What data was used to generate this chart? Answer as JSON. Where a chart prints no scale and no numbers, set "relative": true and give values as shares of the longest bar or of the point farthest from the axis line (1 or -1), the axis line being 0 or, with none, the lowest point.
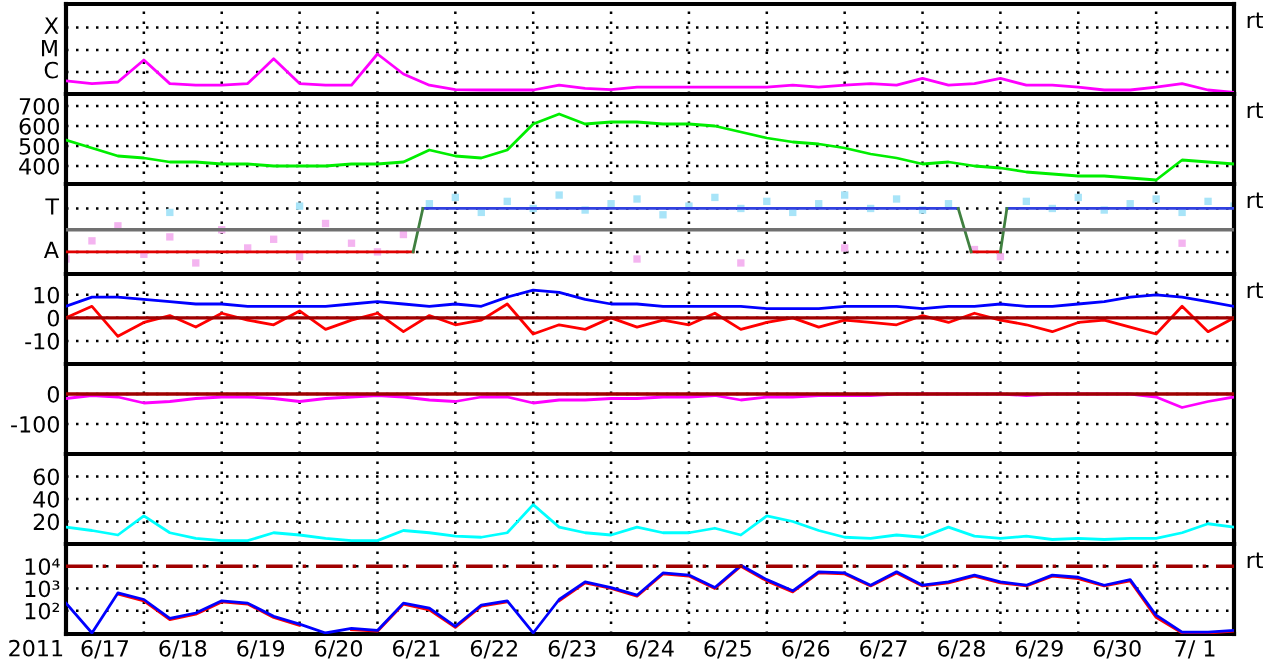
{
  "chart_data": [
    {
      "type": "line",
      "relative": true,
      "tick_labels": "y",
      "grid": true,
      "annotations": [
        "C",
        "M",
        "X",
        "rt"
      ],
      "xlim": [
        "2011-06-17",
        "2011-07-02"
      ],
      "xticks": [
        {
          "value": "2011-06-17",
          "label": null
        },
        {
          "value": "2011-06-18",
          "label": null
        },
        {
          "value": "2011-06-19",
          "label": null
        },
        {
          "value": "2011-06-20",
          "label": null
        },
        {
          "value": "2011-06-21",
          "label": null
        },
        {
          "value": "2011-06-22",
          "label": null
        },
        {
          "value": "2011-06-23",
          "label": null
        },
        {
          "value": "2011-06-24",
          "label": null
        },
        {
          "value": "2011-06-25",
          "label": null
        },
        {
          "value": "2011-06-26",
          "label": null
        },
        {
          "value": "2011-06-27",
          "label": null
        },
        {
          "value": "2011-06-28",
          "label": null
        },
        {
          "value": "2011-06-29",
          "label": null
        },
        {
          "value": "2011-06-30",
          "label": null
        },
        {
          "value": "2011-07-01",
          "label": null
        },
        {
          "value": "2011-07-02",
          "label": null
        }
      ],
      "x": [
        "2011-06-17T00:00",
        "2011-06-17T08:00",
        "2011-06-17T16:00",
        "2011-06-18T00:00",
        "2011-06-18T08:00",
        "2011-06-18T16:00",
        "2011-06-19T00:00",
        "2011-06-19T08:00",
        "2011-06-19T16:00",
        "2011-06-20T00:00",
        "2011-06-20T08:00",
        "2011-06-20T16:00",
        "2011-06-21T00:00",
        "2011-06-21T08:00",
        "2011-06-21T16:00",
        "2011-06-22T00:00",
        "2011-06-22T08:00",
        "2011-06-22T16:00",
        "2011-06-23T00:00",
        "2011-06-23T08:00",
        "2011-06-23T16:00",
        "2011-06-24T00:00",
        "2011-06-24T08:00",
        "2011-06-24T16:00",
        "2011-06-25T00:00",
        "2011-06-25T08:00",
        "2011-06-25T16:00",
        "2011-06-26T00:00",
        "2011-06-26T08:00",
        "2011-06-26T16:00",
        "2011-06-27T00:00",
        "2011-06-27T08:00",
        "2011-06-27T16:00",
        "2011-06-28T00:00",
        "2011-06-28T08:00",
        "2011-06-28T16:00",
        "2011-06-29T00:00",
        "2011-06-29T08:00",
        "2011-06-29T16:00",
        "2011-06-30T00:00",
        "2011-06-30T08:00",
        "2011-06-30T16:00",
        "2011-07-01T00:00",
        "2011-07-01T08:00",
        "2011-07-01T16:00",
        "2011-07-02T00:00"
      ],
      "series": [
        {
          "color": "#ff00ff",
          "values": [
            0.33,
            0.26,
            0.3,
            0.85,
            0.26,
            0.22,
            0.22,
            0.26,
            0.88,
            0.26,
            0.22,
            0.22,
            1,
            0.5,
            0.22,
            0.11,
            0.1,
            0.1,
            0.1,
            0.22,
            0.14,
            0.11,
            0.17,
            0.17,
            0.17,
            0.17,
            0.17,
            0.17,
            0.22,
            0.17,
            0.22,
            0.26,
            0.22,
            0.39,
            0.22,
            0.26,
            0.39,
            0.22,
            0.22,
            0.17,
            0.1,
            0.1,
            0.17,
            0.26,
            0.1,
            0.04
          ]
        }
      ]
    },
    {
      "type": "line",
      "ylim": [
        310,
        760
      ],
      "yticks": [
        400,
        500,
        600,
        700
      ],
      "tick_labels": "y",
      "grid": true,
      "annotations": [
        "rt"
      ],
      "xlim": [
        "2011-06-17",
        "2011-07-02"
      ],
      "xticks": [
        {
          "value": "2011-06-17",
          "label": null
        },
        {
          "value": "2011-06-18",
          "label": null
        },
        {
          "value": "2011-06-19",
          "label": null
        },
        {
          "value": "2011-06-20",
          "label": null
        },
        {
          "value": "2011-06-21",
          "label": null
        },
        {
          "value": "2011-06-22",
          "label": null
        },
        {
          "value": "2011-06-23",
          "label": null
        },
        {
          "value": "2011-06-24",
          "label": null
        },
        {
          "value": "2011-06-25",
          "label": null
        },
        {
          "value": "2011-06-26",
          "label": null
        },
        {
          "value": "2011-06-27",
          "label": null
        },
        {
          "value": "2011-06-28",
          "label": null
        },
        {
          "value": "2011-06-29",
          "label": null
        },
        {
          "value": "2011-06-30",
          "label": null
        },
        {
          "value": "2011-07-01",
          "label": null
        },
        {
          "value": "2011-07-02",
          "label": null
        }
      ],
      "x": [
        "2011-06-17T00:00",
        "2011-06-17T08:00",
        "2011-06-17T16:00",
        "2011-06-18T00:00",
        "2011-06-18T08:00",
        "2011-06-18T16:00",
        "2011-06-19T00:00",
        "2011-06-19T08:00",
        "2011-06-19T16:00",
        "2011-06-20T00:00",
        "2011-06-20T08:00",
        "2011-06-20T16:00",
        "2011-06-21T00:00",
        "2011-06-21T08:00",
        "2011-06-21T16:00",
        "2011-06-22T00:00",
        "2011-06-22T08:00",
        "2011-06-22T16:00",
        "2011-06-23T00:00",
        "2011-06-23T08:00",
        "2011-06-23T16:00",
        "2011-06-24T00:00",
        "2011-06-24T08:00",
        "2011-06-24T16:00",
        "2011-06-25T00:00",
        "2011-06-25T08:00",
        "2011-06-25T16:00",
        "2011-06-26T00:00",
        "2011-06-26T08:00",
        "2011-06-26T16:00",
        "2011-06-27T00:00",
        "2011-06-27T08:00",
        "2011-06-27T16:00",
        "2011-06-28T00:00",
        "2011-06-28T08:00",
        "2011-06-28T16:00",
        "2011-06-29T00:00",
        "2011-06-29T08:00",
        "2011-06-29T16:00",
        "2011-06-30T00:00",
        "2011-06-30T08:00",
        "2011-06-30T16:00",
        "2011-07-01T00:00",
        "2011-07-01T08:00",
        "2011-07-01T16:00",
        "2011-07-02T00:00"
      ],
      "series": [
        {
          "color": "#00ee00",
          "values": [
            530,
            490,
            450,
            440,
            420,
            420,
            410,
            410,
            400,
            400,
            400,
            410,
            410,
            420,
            480,
            450,
            440,
            480,
            610,
            660,
            610,
            620,
            620,
            610,
            610,
            600,
            570,
            540,
            520,
            510,
            490,
            460,
            440,
            410,
            420,
            400,
            390,
            370,
            360,
            350,
            350,
            340,
            330,
            430,
            420,
            410
          ]
        }
      ]
    },
    {
      "type": "line",
      "relative": true,
      "tick_labels": "y",
      "grid": true,
      "annotations": [
        "A",
        "T",
        "rt"
      ],
      "ref_lines": [
        {
          "axis": "y",
          "value": 0.56,
          "color": "#707070"
        }
      ],
      "xlim": [
        "2011-06-17",
        "2011-07-02"
      ],
      "xticks": [
        {
          "value": "2011-06-17",
          "label": null
        },
        {
          "value": "2011-06-18",
          "label": null
        },
        {
          "value": "2011-06-19",
          "label": null
        },
        {
          "value": "2011-06-20",
          "label": null
        },
        {
          "value": "2011-06-21",
          "label": null
        },
        {
          "value": "2011-06-22",
          "label": null
        },
        {
          "value": "2011-06-23",
          "label": null
        },
        {
          "value": "2011-06-24",
          "label": null
        },
        {
          "value": "2011-06-25",
          "label": null
        },
        {
          "value": "2011-06-26",
          "label": null
        },
        {
          "value": "2011-06-27",
          "label": null
        },
        {
          "value": "2011-06-28",
          "label": null
        },
        {
          "value": "2011-06-29",
          "label": null
        },
        {
          "value": "2011-06-30",
          "label": null
        },
        {
          "value": "2011-07-01",
          "label": null
        },
        {
          "value": "2011-07-02",
          "label": null
        }
      ],
      "x": [
        "2011-06-17T00:00",
        "2011-06-17T08:00",
        "2011-06-17T16:00",
        "2011-06-18T00:00",
        "2011-06-18T08:00",
        "2011-06-18T16:00",
        "2011-06-19T00:00",
        "2011-06-19T08:00",
        "2011-06-19T16:00",
        "2011-06-20T00:00",
        "2011-06-20T08:00",
        "2011-06-20T16:00",
        "2011-06-21T00:00",
        "2011-06-21T08:00",
        "2011-06-21T16:00",
        "2011-06-22T00:00",
        "2011-06-22T08:00",
        "2011-06-22T16:00",
        "2011-06-23T00:00",
        "2011-06-23T08:00",
        "2011-06-23T16:00",
        "2011-06-24T00:00",
        "2011-06-24T08:00",
        "2011-06-24T16:00",
        "2011-06-25T00:00",
        "2011-06-25T08:00",
        "2011-06-25T16:00",
        "2011-06-26T00:00",
        "2011-06-26T08:00",
        "2011-06-26T16:00",
        "2011-06-27T00:00",
        "2011-06-27T08:00",
        "2011-06-27T16:00",
        "2011-06-28T00:00",
        "2011-06-28T08:00",
        "2011-06-28T16:00",
        "2011-06-29T00:00",
        "2011-06-29T08:00",
        "2011-06-29T16:00",
        "2011-06-30T00:00",
        "2011-06-30T08:00",
        "2011-06-30T16:00",
        "2011-07-01T00:00",
        "2011-07-01T08:00",
        "2011-07-01T16:00",
        "2011-07-02T00:00"
      ],
      "series": [
        {
          "type": "scatter",
          "marker": "square",
          "color": "#f4b4f0",
          "values": [
            0.19,
            0.42,
            0.61,
            0.25,
            0.47,
            0.14,
            0.56,
            0.33,
            0.44,
            0.22,
            0.64,
            0.39,
            0.28,
            0.5,
            null,
            null,
            null,
            null,
            null,
            null,
            null,
            null,
            0.19,
            null,
            null,
            null,
            0.14,
            null,
            null,
            null,
            0.33,
            null,
            null,
            null,
            null,
            0.31,
            0.22,
            null,
            null,
            null,
            null,
            null,
            null,
            0.39,
            null,
            null
          ]
        },
        {
          "type": "scatter",
          "marker": "square",
          "color": "#a8e4f8",
          "values": [
            null,
            null,
            null,
            null,
            0.78,
            null,
            null,
            null,
            null,
            0.86,
            null,
            null,
            null,
            null,
            0.89,
            0.97,
            0.78,
            0.92,
            0.83,
            1,
            0.81,
            0.89,
            0.95,
            0.75,
            0.86,
            0.97,
            0.83,
            0.92,
            0.78,
            0.89,
            1,
            0.83,
            0.95,
            0.81,
            0.89,
            null,
            null,
            0.92,
            0.83,
            0.97,
            0.81,
            0.89,
            0.95,
            0.78,
            0.92,
            0.86
          ]
        },
        {
          "color": "#e00000",
          "x": [
            "2011-06-17T00:00",
            "2011-06-21T11:00",
            "2011-06-25T00:00",
            "2011-06-28T15:00",
            "2011-06-29T00:00"
          ],
          "values": [
            0.28,
            0.28,
            null,
            0.28,
            0.28
          ]
        },
        {
          "color": "#3040e0",
          "x": [
            "2011-06-21T14:00",
            "2011-06-28T11:00",
            "2011-06-28T20:00",
            "2011-06-29T02:00",
            "2011-07-02T00:00"
          ],
          "values": [
            0.83,
            0.83,
            null,
            0.83,
            0.83
          ]
        },
        {
          "color": "#408040",
          "x": [
            "2011-06-21T11:00",
            "2011-06-21T14:00",
            "2011-06-24T00:00",
            "2011-06-28T11:00",
            "2011-06-28T15:00",
            "2011-06-28T20:00",
            "2011-06-29T00:00",
            "2011-06-29T02:00"
          ],
          "values": [
            0.28,
            0.83,
            null,
            0.83,
            0.28,
            null,
            0.28,
            0.83
          ]
        }
      ]
    },
    {
      "type": "line",
      "ylim": [
        -20,
        19
      ],
      "yticks": [
        -10,
        0,
        10
      ],
      "tick_labels": "y",
      "grid": true,
      "annotations": [
        "rt"
      ],
      "ref_lines": [
        {
          "axis": "y",
          "value": 0,
          "color": "#a00000"
        }
      ],
      "xlim": [
        "2011-06-17",
        "2011-07-02"
      ],
      "xticks": [
        {
          "value": "2011-06-17",
          "label": null
        },
        {
          "value": "2011-06-18",
          "label": null
        },
        {
          "value": "2011-06-19",
          "label": null
        },
        {
          "value": "2011-06-20",
          "label": null
        },
        {
          "value": "2011-06-21",
          "label": null
        },
        {
          "value": "2011-06-22",
          "label": null
        },
        {
          "value": "2011-06-23",
          "label": null
        },
        {
          "value": "2011-06-24",
          "label": null
        },
        {
          "value": "2011-06-25",
          "label": null
        },
        {
          "value": "2011-06-26",
          "label": null
        },
        {
          "value": "2011-06-27",
          "label": null
        },
        {
          "value": "2011-06-28",
          "label": null
        },
        {
          "value": "2011-06-29",
          "label": null
        },
        {
          "value": "2011-06-30",
          "label": null
        },
        {
          "value": "2011-07-01",
          "label": null
        },
        {
          "value": "2011-07-02",
          "label": null
        }
      ],
      "x": [
        "2011-06-17T00:00",
        "2011-06-17T08:00",
        "2011-06-17T16:00",
        "2011-06-18T00:00",
        "2011-06-18T08:00",
        "2011-06-18T16:00",
        "2011-06-19T00:00",
        "2011-06-19T08:00",
        "2011-06-19T16:00",
        "2011-06-20T00:00",
        "2011-06-20T08:00",
        "2011-06-20T16:00",
        "2011-06-21T00:00",
        "2011-06-21T08:00",
        "2011-06-21T16:00",
        "2011-06-22T00:00",
        "2011-06-22T08:00",
        "2011-06-22T16:00",
        "2011-06-23T00:00",
        "2011-06-23T08:00",
        "2011-06-23T16:00",
        "2011-06-24T00:00",
        "2011-06-24T08:00",
        "2011-06-24T16:00",
        "2011-06-25T00:00",
        "2011-06-25T08:00",
        "2011-06-25T16:00",
        "2011-06-26T00:00",
        "2011-06-26T08:00",
        "2011-06-26T16:00",
        "2011-06-27T00:00",
        "2011-06-27T08:00",
        "2011-06-27T16:00",
        "2011-06-28T00:00",
        "2011-06-28T08:00",
        "2011-06-28T16:00",
        "2011-06-29T00:00",
        "2011-06-29T08:00",
        "2011-06-29T16:00",
        "2011-06-30T00:00",
        "2011-06-30T08:00",
        "2011-06-30T16:00",
        "2011-07-01T00:00",
        "2011-07-01T08:00",
        "2011-07-01T16:00",
        "2011-07-02T00:00"
      ],
      "series": [
        {
          "color": "#0000ff",
          "values": [
            5,
            9,
            9,
            8,
            7,
            6,
            6,
            5,
            5,
            5,
            5,
            6,
            7,
            6,
            5,
            6,
            5,
            9,
            12,
            11,
            8,
            6,
            6,
            5,
            5,
            5,
            5,
            4,
            4,
            4,
            5,
            5,
            5,
            4,
            5,
            5,
            6,
            5,
            5,
            6,
            7,
            9,
            10,
            9,
            7,
            5
          ]
        },
        {
          "color": "#ff0000",
          "values": [
            0,
            5,
            -8,
            -2,
            1,
            -4,
            2,
            -1,
            -3,
            3,
            -5,
            -1,
            2,
            -6,
            1,
            -3,
            -1,
            6,
            -7,
            -3,
            -5,
            0,
            -4,
            -1,
            -3,
            2,
            -5,
            -2,
            0,
            -4,
            -1,
            -2,
            -3,
            1,
            -2,
            2,
            -1,
            -3,
            -6,
            -2,
            -1,
            -4,
            -7,
            5,
            -6,
            0
          ]
        }
      ]
    },
    {
      "type": "line",
      "ylim": [
        -200,
        100
      ],
      "yticks": [
        -100,
        0
      ],
      "tick_labels": "y",
      "grid": true,
      "ref_lines": [
        {
          "axis": "y",
          "value": 0,
          "color": "#a00000"
        }
      ],
      "xlim": [
        "2011-06-17",
        "2011-07-02"
      ],
      "xticks": [
        {
          "value": "2011-06-17",
          "label": null
        },
        {
          "value": "2011-06-18",
          "label": null
        },
        {
          "value": "2011-06-19",
          "label": null
        },
        {
          "value": "2011-06-20",
          "label": null
        },
        {
          "value": "2011-06-21",
          "label": null
        },
        {
          "value": "2011-06-22",
          "label": null
        },
        {
          "value": "2011-06-23",
          "label": null
        },
        {
          "value": "2011-06-24",
          "label": null
        },
        {
          "value": "2011-06-25",
          "label": null
        },
        {
          "value": "2011-06-26",
          "label": null
        },
        {
          "value": "2011-06-27",
          "label": null
        },
        {
          "value": "2011-06-28",
          "label": null
        },
        {
          "value": "2011-06-29",
          "label": null
        },
        {
          "value": "2011-06-30",
          "label": null
        },
        {
          "value": "2011-07-01",
          "label": null
        },
        {
          "value": "2011-07-02",
          "label": null
        }
      ],
      "x": [
        "2011-06-17T00:00",
        "2011-06-17T08:00",
        "2011-06-17T16:00",
        "2011-06-18T00:00",
        "2011-06-18T08:00",
        "2011-06-18T16:00",
        "2011-06-19T00:00",
        "2011-06-19T08:00",
        "2011-06-19T16:00",
        "2011-06-20T00:00",
        "2011-06-20T08:00",
        "2011-06-20T16:00",
        "2011-06-21T00:00",
        "2011-06-21T08:00",
        "2011-06-21T16:00",
        "2011-06-22T00:00",
        "2011-06-22T08:00",
        "2011-06-22T16:00",
        "2011-06-23T00:00",
        "2011-06-23T08:00",
        "2011-06-23T16:00",
        "2011-06-24T00:00",
        "2011-06-24T08:00",
        "2011-06-24T16:00",
        "2011-06-25T00:00",
        "2011-06-25T08:00",
        "2011-06-25T16:00",
        "2011-06-26T00:00",
        "2011-06-26T08:00",
        "2011-06-26T16:00",
        "2011-06-27T00:00",
        "2011-06-27T08:00",
        "2011-06-27T16:00",
        "2011-06-28T00:00",
        "2011-06-28T08:00",
        "2011-06-28T16:00",
        "2011-06-29T00:00",
        "2011-06-29T08:00",
        "2011-06-29T16:00",
        "2011-06-30T00:00",
        "2011-06-30T08:00",
        "2011-06-30T16:00",
        "2011-07-01T00:00",
        "2011-07-01T08:00",
        "2011-07-01T16:00",
        "2011-07-02T00:00"
      ],
      "series": [
        {
          "color": "#ff00ff",
          "values": [
            -15,
            -5,
            -10,
            -30,
            -25,
            -15,
            -10,
            -10,
            -15,
            -25,
            -15,
            -10,
            -5,
            -10,
            -20,
            -25,
            -10,
            -10,
            -30,
            -20,
            -20,
            -15,
            -15,
            -10,
            -10,
            -5,
            -20,
            -10,
            -10,
            -5,
            -5,
            -5,
            0,
            0,
            0,
            0,
            0,
            -5,
            0,
            0,
            0,
            0,
            -10,
            -45,
            -25,
            -10
          ]
        }
      ]
    },
    {
      "type": "line",
      "ylim": [
        0,
        80
      ],
      "yticks": [
        20,
        40,
        60
      ],
      "tick_labels": "y",
      "grid": true,
      "xlim": [
        "2011-06-17",
        "2011-07-02"
      ],
      "xticks": [
        {
          "value": "2011-06-17",
          "label": null
        },
        {
          "value": "2011-06-18",
          "label": null
        },
        {
          "value": "2011-06-19",
          "label": null
        },
        {
          "value": "2011-06-20",
          "label": null
        },
        {
          "value": "2011-06-21",
          "label": null
        },
        {
          "value": "2011-06-22",
          "label": null
        },
        {
          "value": "2011-06-23",
          "label": null
        },
        {
          "value": "2011-06-24",
          "label": null
        },
        {
          "value": "2011-06-25",
          "label": null
        },
        {
          "value": "2011-06-26",
          "label": null
        },
        {
          "value": "2011-06-27",
          "label": null
        },
        {
          "value": "2011-06-28",
          "label": null
        },
        {
          "value": "2011-06-29",
          "label": null
        },
        {
          "value": "2011-06-30",
          "label": null
        },
        {
          "value": "2011-07-01",
          "label": null
        },
        {
          "value": "2011-07-02",
          "label": null
        }
      ],
      "x": [
        "2011-06-17T00:00",
        "2011-06-17T08:00",
        "2011-06-17T16:00",
        "2011-06-18T00:00",
        "2011-06-18T08:00",
        "2011-06-18T16:00",
        "2011-06-19T00:00",
        "2011-06-19T08:00",
        "2011-06-19T16:00",
        "2011-06-20T00:00",
        "2011-06-20T08:00",
        "2011-06-20T16:00",
        "2011-06-21T00:00",
        "2011-06-21T08:00",
        "2011-06-21T16:00",
        "2011-06-22T00:00",
        "2011-06-22T08:00",
        "2011-06-22T16:00",
        "2011-06-23T00:00",
        "2011-06-23T08:00",
        "2011-06-23T16:00",
        "2011-06-24T00:00",
        "2011-06-24T08:00",
        "2011-06-24T16:00",
        "2011-06-25T00:00",
        "2011-06-25T08:00",
        "2011-06-25T16:00",
        "2011-06-26T00:00",
        "2011-06-26T08:00",
        "2011-06-26T16:00",
        "2011-06-27T00:00",
        "2011-06-27T08:00",
        "2011-06-27T16:00",
        "2011-06-28T00:00",
        "2011-06-28T08:00",
        "2011-06-28T16:00",
        "2011-06-29T00:00",
        "2011-06-29T08:00",
        "2011-06-29T16:00",
        "2011-06-30T00:00",
        "2011-06-30T08:00",
        "2011-06-30T16:00",
        "2011-07-01T00:00",
        "2011-07-01T08:00",
        "2011-07-01T16:00",
        "2011-07-02T00:00"
      ],
      "series": [
        {
          "color": "#00ffff",
          "values": [
            15,
            12,
            8,
            25,
            10,
            5,
            3,
            3,
            10,
            8,
            5,
            3,
            3,
            12,
            10,
            7,
            6,
            10,
            35,
            15,
            10,
            8,
            15,
            10,
            10,
            14,
            8,
            25,
            20,
            12,
            6,
            5,
            8,
            6,
            15,
            7,
            5,
            7,
            4,
            5,
            4,
            5,
            5,
            10,
            18,
            15
          ]
        }
      ]
    },
    {
      "type": "line",
      "log": "y",
      "ylim": [
        9,
        100000
      ],
      "yticks": [
        {
          "value": 100,
          "label": "10²"
        },
        {
          "value": 1000,
          "label": "10³"
        },
        {
          "value": 10000,
          "label": "10⁴"
        }
      ],
      "grid": true,
      "annotations": [
        "rt"
      ],
      "xlabel": "2011",
      "ref_lines": [
        {
          "axis": "y",
          "value": 10000,
          "color": "#a00000",
          "line_style": "dashed"
        }
      ],
      "xlim": [
        "2011-06-17",
        "2011-07-02"
      ],
      "xticks": [
        {
          "value": "2011-06-17",
          "label": null
        },
        {
          "value": "2011-06-18",
          "label": null
        },
        {
          "value": "2011-06-19",
          "label": null
        },
        {
          "value": "2011-06-20",
          "label": null
        },
        {
          "value": "2011-06-21",
          "label": null
        },
        {
          "value": "2011-06-22",
          "label": null
        },
        {
          "value": "2011-06-23",
          "label": null
        },
        {
          "value": "2011-06-24",
          "label": null
        },
        {
          "value": "2011-06-25",
          "label": null
        },
        {
          "value": "2011-06-26",
          "label": null
        },
        {
          "value": "2011-06-27",
          "label": null
        },
        {
          "value": "2011-06-28",
          "label": null
        },
        {
          "value": "2011-06-29",
          "label": null
        },
        {
          "value": "2011-06-30",
          "label": null
        },
        {
          "value": "2011-07-01",
          "label": null
        },
        {
          "value": "2011-07-02",
          "label": null
        },
        {
          "value": "2011-06-17T12:00",
          "label": "6/17"
        },
        {
          "value": "2011-06-18T12:00",
          "label": "6/18"
        },
        {
          "value": "2011-06-19T12:00",
          "label": "6/19"
        },
        {
          "value": "2011-06-20T12:00",
          "label": "6/20"
        },
        {
          "value": "2011-06-21T12:00",
          "label": "6/21"
        },
        {
          "value": "2011-06-22T12:00",
          "label": "6/22"
        },
        {
          "value": "2011-06-23T12:00",
          "label": "6/23"
        },
        {
          "value": "2011-06-24T12:00",
          "label": "6/24"
        },
        {
          "value": "2011-06-25T12:00",
          "label": "6/25"
        },
        {
          "value": "2011-06-26T12:00",
          "label": "6/26"
        },
        {
          "value": "2011-06-27T12:00",
          "label": "6/27"
        },
        {
          "value": "2011-06-28T12:00",
          "label": "6/28"
        },
        {
          "value": "2011-06-29T12:00",
          "label": "6/29"
        },
        {
          "value": "2011-06-30T12:00",
          "label": "6/30"
        },
        {
          "value": "2011-07-01T12:00",
          "label": "7/ 1"
        }
      ],
      "x": [
        "2011-06-17T00:00",
        "2011-06-17T08:00",
        "2011-06-17T16:00",
        "2011-06-18T00:00",
        "2011-06-18T08:00",
        "2011-06-18T16:00",
        "2011-06-19T00:00",
        "2011-06-19T08:00",
        "2011-06-19T16:00",
        "2011-06-20T00:00",
        "2011-06-20T08:00",
        "2011-06-20T16:00",
        "2011-06-21T00:00",
        "2011-06-21T08:00",
        "2011-06-21T16:00",
        "2011-06-22T00:00",
        "2011-06-22T08:00",
        "2011-06-22T16:00",
        "2011-06-23T00:00",
        "2011-06-23T08:00",
        "2011-06-23T16:00",
        "2011-06-24T00:00",
        "2011-06-24T08:00",
        "2011-06-24T16:00",
        "2011-06-25T00:00",
        "2011-06-25T08:00",
        "2011-06-25T16:00",
        "2011-06-26T00:00",
        "2011-06-26T08:00",
        "2011-06-26T16:00",
        "2011-06-27T00:00",
        "2011-06-27T08:00",
        "2011-06-27T16:00",
        "2011-06-28T00:00",
        "2011-06-28T08:00",
        "2011-06-28T16:00",
        "2011-06-29T00:00",
        "2011-06-29T08:00",
        "2011-06-29T16:00",
        "2011-06-30T00:00",
        "2011-06-30T08:00",
        "2011-06-30T16:00",
        "2011-07-01T00:00",
        "2011-07-01T08:00",
        "2011-07-01T16:00",
        "2011-07-02T00:00"
      ],
      "series": [
        {
          "color": "#ff0000",
          "values": [
            null,
            null,
            560,
            280,
            40,
            70,
            250,
            200,
            50,
            22,
            null,
            14,
            12,
            200,
            110,
            18,
            160,
            250,
            null,
            280,
            1800,
            1000,
            450,
            4500,
            3600,
            1000,
            10000,
            2200,
            700,
            5000,
            4500,
            1300,
            5000,
            1300,
            1800,
            3600,
            1800,
            1300,
            3600,
            2800,
            1300,
            2200,
            50,
            10,
            10,
            12
          ]
        },
        {
          "color": "#0000ff",
          "values": [
            220,
            10,
            630,
            320,
            45,
            79,
            280,
            220,
            56,
            25,
            10,
            16,
            13,
            220,
            130,
            20,
            180,
            280,
            10,
            320,
            2000,
            1100,
            500,
            5000,
            4000,
            1100,
            11000,
            2500,
            790,
            5600,
            5000,
            1400,
            5600,
            1400,
            2000,
            4000,
            2000,
            1400,
            4000,
            3200,
            1400,
            2500,
            63,
            11,
            11,
            13
          ]
        }
      ]
    }
  ]
}
